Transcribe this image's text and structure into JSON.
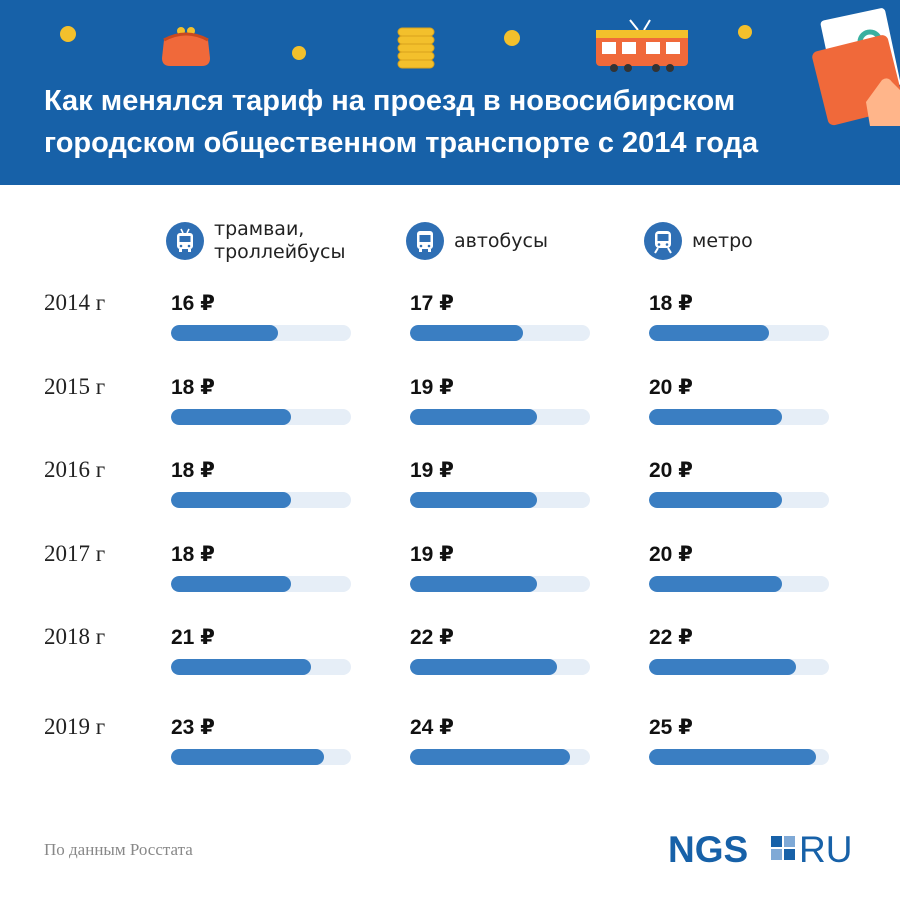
{
  "title": {
    "line1": "Как менялся тариф на проезд в новосибирском",
    "line2": "городском общественном транспорте с 2014 года"
  },
  "source": "По данным Росстата",
  "logo": {
    "left": "NGS",
    "right": "RU"
  },
  "colors": {
    "header": "#1761a8",
    "bar_fill": "#3a7ec2",
    "bar_track": "#e6eef7",
    "coin": "#f3c02c"
  },
  "icons": [
    "purse-icon",
    "coins-icon",
    "tram-icon",
    "wallet-icon",
    "trolleybus-icon",
    "bus-icon",
    "metro-icon"
  ],
  "chart_data": {
    "type": "bar",
    "categories": [
      "2014 г",
      "2015 г",
      "2016 г",
      "2017 г",
      "2018 г",
      "2019 г"
    ],
    "unit": "₽",
    "series": [
      {
        "name": "трамваи,\nтроллейбусы",
        "values": [
          16,
          18,
          18,
          18,
          21,
          23
        ]
      },
      {
        "name": "автобусы",
        "values": [
          17,
          19,
          19,
          19,
          22,
          24
        ]
      },
      {
        "name": "метро",
        "values": [
          18,
          20,
          20,
          20,
          22,
          25
        ]
      }
    ],
    "xlim": [
      0,
      27
    ]
  }
}
